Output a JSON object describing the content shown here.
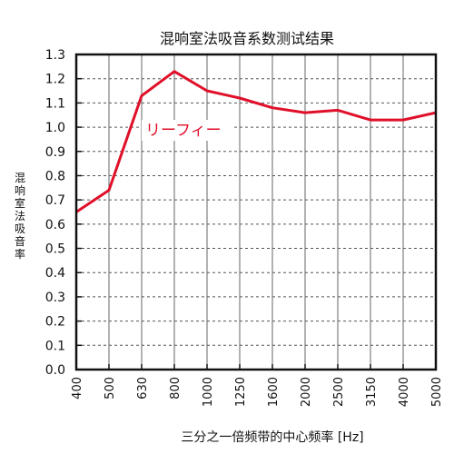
{
  "chart_data": {
    "type": "line",
    "title": "混响室法吸音系数测试结果",
    "xlabel": "三分之一倍频带的中心频率 [Hz]",
    "ylabel": "混响室法吸音率",
    "categories": [
      "400",
      "500",
      "630",
      "800",
      "1000",
      "1250",
      "1600",
      "2000",
      "2500",
      "3150",
      "4000",
      "5000"
    ],
    "series": [
      {
        "name": "リーフィー",
        "color": "#e0102a",
        "values": [
          0.65,
          0.74,
          1.13,
          1.23,
          1.15,
          1.12,
          1.08,
          1.06,
          1.07,
          1.03,
          1.03,
          1.06
        ]
      }
    ],
    "ylim": [
      0.0,
      1.3
    ],
    "yticks": [
      "0.0",
      "0.1",
      "0.2",
      "0.3",
      "0.4",
      "0.5",
      "0.6",
      "0.7",
      "0.8",
      "0.9",
      "1.0",
      "1.1",
      "1.2",
      "1.3"
    ],
    "grid": true,
    "legend": "inline-label"
  }
}
